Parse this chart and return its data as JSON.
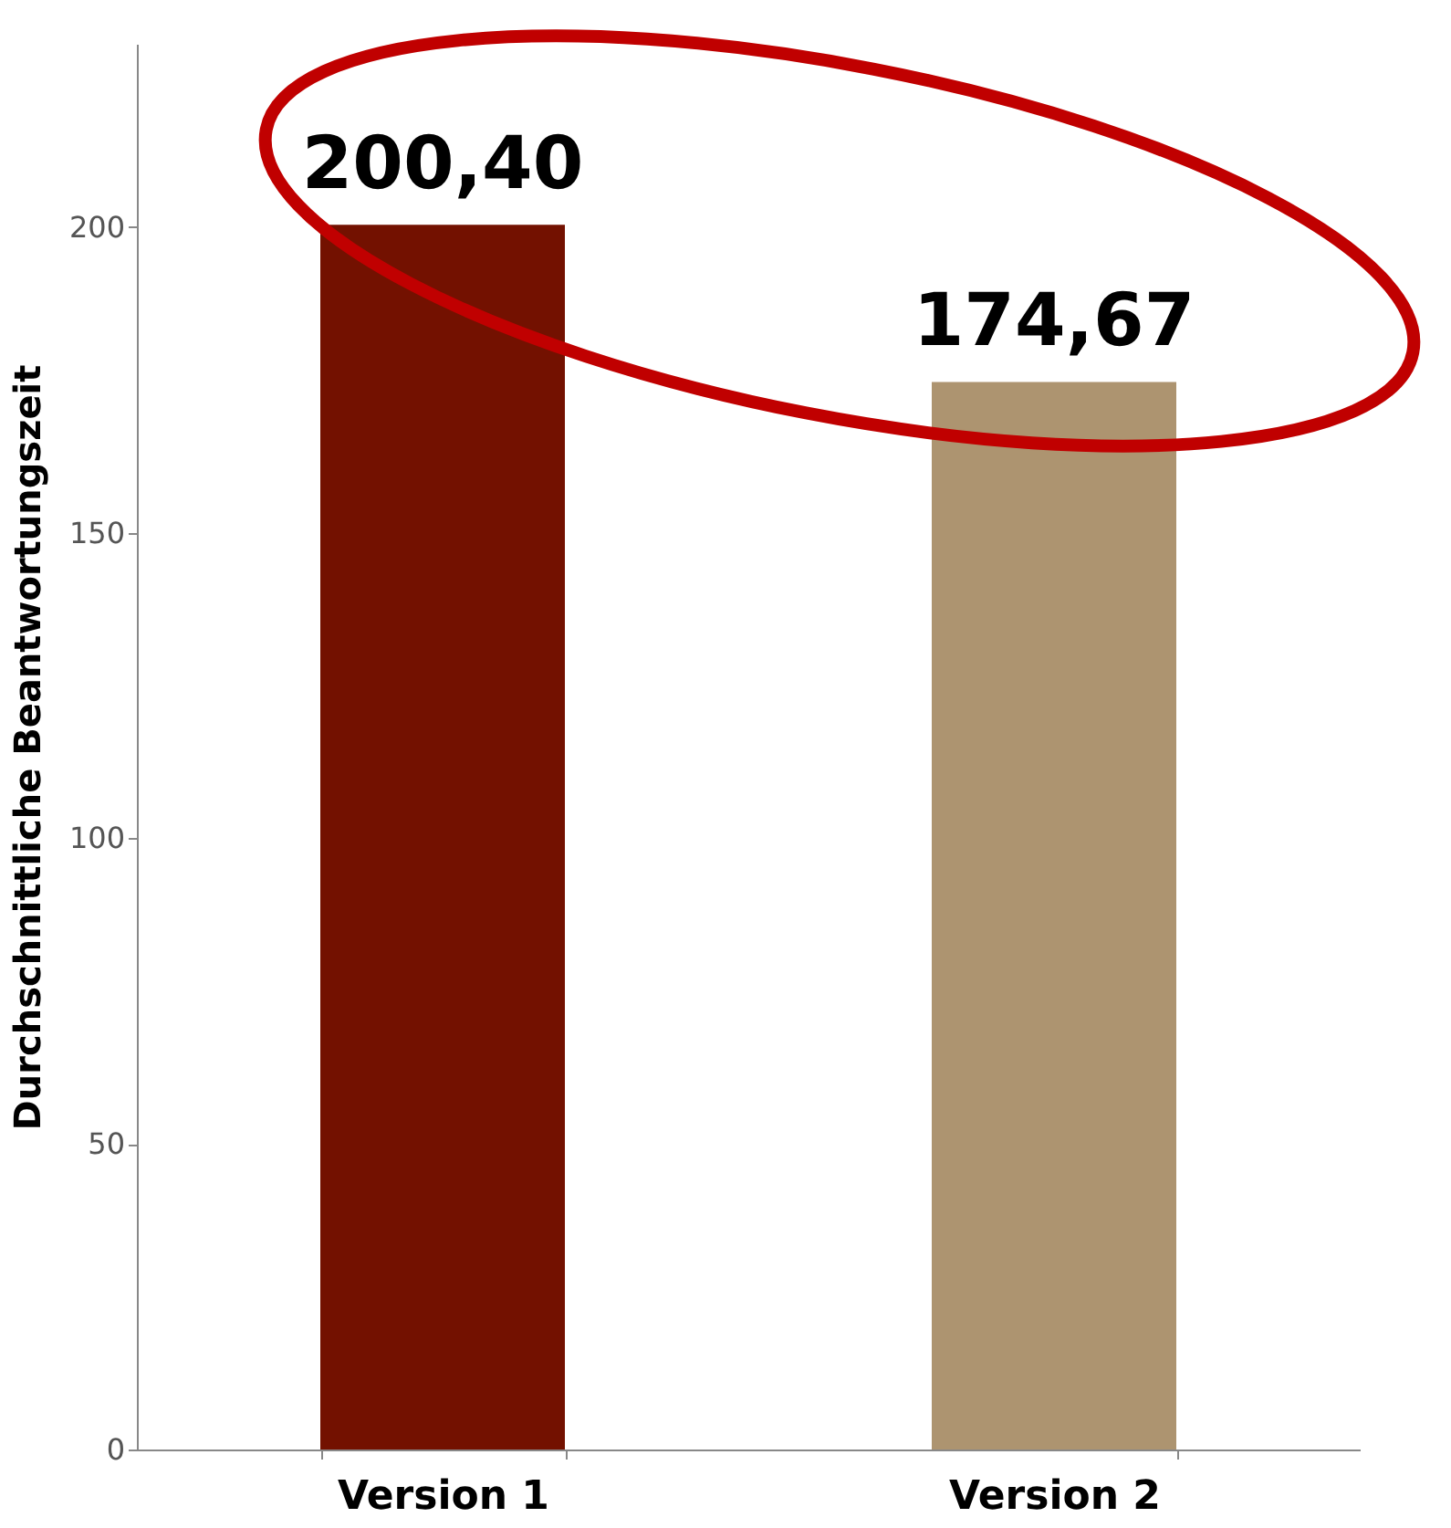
{
  "chart_data": {
    "type": "bar",
    "ylabel": "Durchschnittliche Beantwortungszeit",
    "categories": [
      "Version 1",
      "Version 2"
    ],
    "values": [
      200.4,
      174.67
    ],
    "colors": [
      "#731100",
      "#ad9470"
    ],
    "value_labels": [
      "200,40",
      "174,67"
    ],
    "ylim": [
      0,
      230
    ],
    "yticks": [
      0,
      50,
      100,
      150,
      200
    ],
    "grid": false
  }
}
